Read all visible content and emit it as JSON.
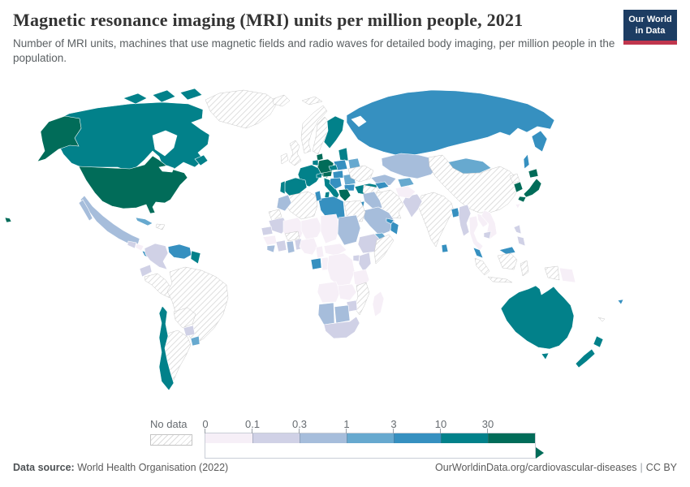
{
  "header": {
    "title": "Magnetic resonance imaging (MRI) units per million people, 2021",
    "subtitle": "Number of MRI units, machines that use magnetic fields and radio waves for detailed body imaging, per million people in the population.",
    "logo": {
      "line1": "Our World",
      "line2": "in Data",
      "bg_color": "#1d3d63",
      "stripe_color": "#c0364d"
    }
  },
  "footer": {
    "source_label": "Data source:",
    "source_value": " World Health Organisation (2022)",
    "link": "OurWorldinData.org/cardiovascular-diseases",
    "separator": "|",
    "license": "CC BY"
  },
  "chart_data": {
    "type": "choropleth_map",
    "title": "Magnetic resonance imaging (MRI) units per million people, 2021",
    "unit": "MRI units per million people",
    "year": 2021,
    "projection": "world",
    "legend_position": "bottom",
    "color_scale": {
      "scheme": "PuBuGn",
      "no_data_label": "No data",
      "no_data_pattern": "diagonal-hatch",
      "tick_labels": [
        "0",
        "0.1",
        "0.3",
        "1",
        "3",
        "10",
        "30"
      ],
      "bins": [
        {
          "tick": "0",
          "range": "0-0.1",
          "color": "#f6eff7"
        },
        {
          "tick": "0.1",
          "range": "0.1-0.3",
          "color": "#d0d1e6"
        },
        {
          "tick": "0.3",
          "range": "0.3-1",
          "color": "#a6bddb"
        },
        {
          "tick": "1",
          "range": "1-3",
          "color": "#67a9cf"
        },
        {
          "tick": "3",
          "range": "3-10",
          "color": "#3690c0"
        },
        {
          "tick": "10",
          "range": "10-30",
          "color": "#02818a"
        },
        {
          "tick": "30",
          "range": "30+",
          "color": "#016c59"
        }
      ],
      "bin_colors": {
        "0-0.1": "#f6eff7",
        "0.1-0.3": "#d0d1e6",
        "0.3-1": "#a6bddb",
        "1-3": "#67a9cf",
        "3-10": "#3690c0",
        "10-30": "#02818a",
        "30+": "#016c59"
      }
    },
    "regions": [
      {
        "id": "usa",
        "name": "United States",
        "value": "30+"
      },
      {
        "id": "canada",
        "name": "Canada",
        "value": "10-30"
      },
      {
        "id": "greenland",
        "name": "Greenland",
        "value": "no-data"
      },
      {
        "id": "mexico",
        "name": "Mexico",
        "value": "0.3-1"
      },
      {
        "id": "guatemala",
        "name": "Guatemala",
        "value": "0.1-0.3"
      },
      {
        "id": "honduras",
        "name": "Honduras & Nicaragua",
        "value": "0-0.1"
      },
      {
        "id": "costa-rica-panama",
        "name": "Costa Rica & Panama",
        "value": "3-10"
      },
      {
        "id": "cuba",
        "name": "Cuba",
        "value": "1-3"
      },
      {
        "id": "hispaniola",
        "name": "Haiti & Dominican Rep.",
        "value": "no-data"
      },
      {
        "id": "colombia",
        "name": "Colombia",
        "value": "0.1-0.3"
      },
      {
        "id": "venezuela",
        "name": "Venezuela",
        "value": "3-10"
      },
      {
        "id": "guyanas",
        "name": "Guyana & Suriname",
        "value": "10-30"
      },
      {
        "id": "ecuador",
        "name": "Ecuador",
        "value": "0.1-0.3"
      },
      {
        "id": "peru",
        "name": "Peru",
        "value": "no-data"
      },
      {
        "id": "brazil",
        "name": "Brazil",
        "value": "no-data"
      },
      {
        "id": "bolivia",
        "name": "Bolivia",
        "value": "no-data"
      },
      {
        "id": "paraguay",
        "name": "Paraguay",
        "value": "0.1-0.3"
      },
      {
        "id": "uruguay",
        "name": "Uruguay",
        "value": "1-3"
      },
      {
        "id": "argentina",
        "name": "Argentina",
        "value": "no-data"
      },
      {
        "id": "chile",
        "name": "Chile",
        "value": "10-30"
      },
      {
        "id": "iceland",
        "name": "Iceland",
        "value": "no-data"
      },
      {
        "id": "uk",
        "name": "United Kingdom",
        "value": "no-data"
      },
      {
        "id": "ireland",
        "name": "Ireland",
        "value": "no-data"
      },
      {
        "id": "norway",
        "name": "Norway",
        "value": "no-data"
      },
      {
        "id": "svalbard",
        "name": "Svalbard",
        "value": "no-data"
      },
      {
        "id": "sweden",
        "name": "Sweden",
        "value": "no-data"
      },
      {
        "id": "finland",
        "name": "Finland",
        "value": "10-30"
      },
      {
        "id": "denmark",
        "name": "Denmark",
        "value": "30+"
      },
      {
        "id": "germany",
        "name": "Germany",
        "value": "30+"
      },
      {
        "id": "benelux",
        "name": "Netherlands & Belgium",
        "value": "10-30"
      },
      {
        "id": "france",
        "name": "France",
        "value": "10-30"
      },
      {
        "id": "spain",
        "name": "Spain",
        "value": "10-30"
      },
      {
        "id": "portugal",
        "name": "Portugal",
        "value": "10-30"
      },
      {
        "id": "italy",
        "name": "Italy",
        "value": "10-30"
      },
      {
        "id": "switzerland",
        "name": "Switzerland",
        "value": "10-30"
      },
      {
        "id": "austria",
        "name": "Austria",
        "value": "30+"
      },
      {
        "id": "czechia",
        "name": "Czechia",
        "value": "10-30"
      },
      {
        "id": "poland",
        "name": "Poland",
        "value": "3-10"
      },
      {
        "id": "baltics",
        "name": "Baltic states",
        "value": "10-30"
      },
      {
        "id": "belarus",
        "name": "Belarus",
        "value": "1-3"
      },
      {
        "id": "ukraine",
        "name": "Ukraine",
        "value": "no-data"
      },
      {
        "id": "hungary-slovakia",
        "name": "Hungary & Slovakia",
        "value": "3-10"
      },
      {
        "id": "balkans",
        "name": "Western Balkans",
        "value": "3-10"
      },
      {
        "id": "romania",
        "name": "Romania",
        "value": "1-3"
      },
      {
        "id": "bulgaria",
        "name": "Bulgaria",
        "value": "3-10"
      },
      {
        "id": "greece",
        "name": "Greece",
        "value": "30+"
      },
      {
        "id": "turkey",
        "name": "Turkey",
        "value": "10-30"
      },
      {
        "id": "russia",
        "name": "Russia",
        "value": "3-10"
      },
      {
        "id": "kazakhstan",
        "name": "Kazakhstan",
        "value": "0.3-1"
      },
      {
        "id": "uzbekistan",
        "name": "Uzbekistan",
        "value": "0.3-1"
      },
      {
        "id": "turkmenistan",
        "name": "Turkmenistan",
        "value": "no-data"
      },
      {
        "id": "kyrgyzstan-tajikistan",
        "name": "Kyrgyzstan & Tajikistan",
        "value": "1-3"
      },
      {
        "id": "caucasus",
        "name": "Caucasus",
        "value": "3-10"
      },
      {
        "id": "mongolia",
        "name": "Mongolia",
        "value": "1-3"
      },
      {
        "id": "china",
        "name": "China",
        "value": "no-data"
      },
      {
        "id": "north-korea",
        "name": "North Korea",
        "value": "no-data"
      },
      {
        "id": "south-korea",
        "name": "South Korea",
        "value": "30+"
      },
      {
        "id": "japan",
        "name": "Japan",
        "value": "30+"
      },
      {
        "id": "taiwan",
        "name": "Taiwan",
        "value": "0-0.1"
      },
      {
        "id": "india",
        "name": "India",
        "value": "no-data"
      },
      {
        "id": "pakistan",
        "name": "Pakistan",
        "value": "0.1-0.3"
      },
      {
        "id": "afghanistan",
        "name": "Afghanistan",
        "value": "0-0.1"
      },
      {
        "id": "iran",
        "name": "Iran",
        "value": "no-data"
      },
      {
        "id": "iraq-syria",
        "name": "Iraq & Syria",
        "value": "0.3-1"
      },
      {
        "id": "israel",
        "name": "Israel & Jordan",
        "value": "3-10"
      },
      {
        "id": "saudi-arabia",
        "name": "Saudi Arabia",
        "value": "0.3-1"
      },
      {
        "id": "yemen",
        "name": "Yemen",
        "value": "1-3"
      },
      {
        "id": "oman",
        "name": "Oman",
        "value": "3-10"
      },
      {
        "id": "uae",
        "name": "United Arab Emirates",
        "value": "3-10"
      },
      {
        "id": "egypt",
        "name": "Egypt",
        "value": "no-data"
      },
      {
        "id": "libya",
        "name": "Libya",
        "value": "3-10"
      },
      {
        "id": "tunisia",
        "name": "Tunisia",
        "value": "3-10"
      },
      {
        "id": "algeria",
        "name": "Algeria",
        "value": "no-data"
      },
      {
        "id": "morocco",
        "name": "Morocco",
        "value": "0.3-1"
      },
      {
        "id": "western-sahara",
        "name": "Western Sahara",
        "value": "no-data"
      },
      {
        "id": "mauritania",
        "name": "Mauritania",
        "value": "0.1-0.3"
      },
      {
        "id": "mali",
        "name": "Mali",
        "value": "0-0.1"
      },
      {
        "id": "niger",
        "name": "Niger",
        "value": "0-0.1"
      },
      {
        "id": "chad",
        "name": "Chad",
        "value": "0-0.1"
      },
      {
        "id": "sudan",
        "name": "Sudan",
        "value": "0.3-1"
      },
      {
        "id": "ethiopia",
        "name": "Ethiopia",
        "value": "0.1-0.3"
      },
      {
        "id": "somalia",
        "name": "Somalia",
        "value": "no-data"
      },
      {
        "id": "senegal",
        "name": "Senegal",
        "value": "0.1-0.3"
      },
      {
        "id": "guinea",
        "name": "Guinea",
        "value": "0-0.1"
      },
      {
        "id": "sierra-leone-liberia",
        "name": "Sierra Leone & Liberia",
        "value": "0.3-1"
      },
      {
        "id": "ivory-coast",
        "name": "Cote d'Ivoire",
        "value": "0.1-0.3"
      },
      {
        "id": "ghana",
        "name": "Ghana",
        "value": "0.3-1"
      },
      {
        "id": "togo-benin",
        "name": "Togo & Benin",
        "value": "0.1-0.3"
      },
      {
        "id": "burkina-faso",
        "name": "Burkina Faso",
        "value": "no-data"
      },
      {
        "id": "nigeria",
        "name": "Nigeria",
        "value": "0-0.1"
      },
      {
        "id": "cameroon",
        "name": "Cameroon",
        "value": "0-0.1"
      },
      {
        "id": "central-african-republic",
        "name": "Central African Republic",
        "value": "0-0.1"
      },
      {
        "id": "gabon",
        "name": "Gabon",
        "value": "3-10"
      },
      {
        "id": "congo",
        "name": "Congo",
        "value": "0-0.1"
      },
      {
        "id": "drc",
        "name": "Democratic Republic of Congo",
        "value": "0-0.1"
      },
      {
        "id": "uganda",
        "name": "Uganda",
        "value": "0.1-0.3"
      },
      {
        "id": "kenya",
        "name": "Kenya",
        "value": "0.1-0.3"
      },
      {
        "id": "tanzania",
        "name": "Tanzania",
        "value": "0-0.1"
      },
      {
        "id": "angola",
        "name": "Angola",
        "value": "0-0.1"
      },
      {
        "id": "zambia",
        "name": "Zambia",
        "value": "0-0.1"
      },
      {
        "id": "mozambique",
        "name": "Mozambique",
        "value": "no-data"
      },
      {
        "id": "zimbabwe",
        "name": "Zimbabwe",
        "value": "0.1-0.3"
      },
      {
        "id": "namibia",
        "name": "Namibia",
        "value": "0.3-1"
      },
      {
        "id": "botswana",
        "name": "Botswana",
        "value": "0.3-1"
      },
      {
        "id": "south-africa",
        "name": "South Africa",
        "value": "0.1-0.3"
      },
      {
        "id": "madagascar",
        "name": "Madagascar",
        "value": "0-0.1"
      },
      {
        "id": "bangladesh",
        "name": "Bangladesh",
        "value": "3-10"
      },
      {
        "id": "myanmar",
        "name": "Myanmar",
        "value": "0.1-0.3"
      },
      {
        "id": "thailand",
        "name": "Thailand",
        "value": "0-0.1"
      },
      {
        "id": "laos",
        "name": "Laos",
        "value": "0-0.1"
      },
      {
        "id": "vietnam",
        "name": "Vietnam",
        "value": "0-0.1"
      },
      {
        "id": "cambodia",
        "name": "Cambodia",
        "value": "0.1-0.3"
      },
      {
        "id": "malaysia",
        "name": "Malaysia",
        "value": "3-10"
      },
      {
        "id": "indonesia",
        "name": "Indonesia",
        "value": "no-data"
      },
      {
        "id": "papua-new-guinea",
        "name": "Papua New Guinea",
        "value": "0-0.1"
      },
      {
        "id": "philippines",
        "name": "Philippines",
        "value": "0.1-0.3"
      },
      {
        "id": "sri-lanka",
        "name": "Sri Lanka",
        "value": "3-10"
      },
      {
        "id": "australia",
        "name": "Australia",
        "value": "10-30"
      },
      {
        "id": "new-zealand",
        "name": "New Zealand",
        "value": "10-30"
      },
      {
        "id": "fiji",
        "name": "Fiji",
        "value": "3-10"
      },
      {
        "id": "new-caledonia",
        "name": "New Caledonia",
        "value": "no-data"
      }
    ]
  }
}
